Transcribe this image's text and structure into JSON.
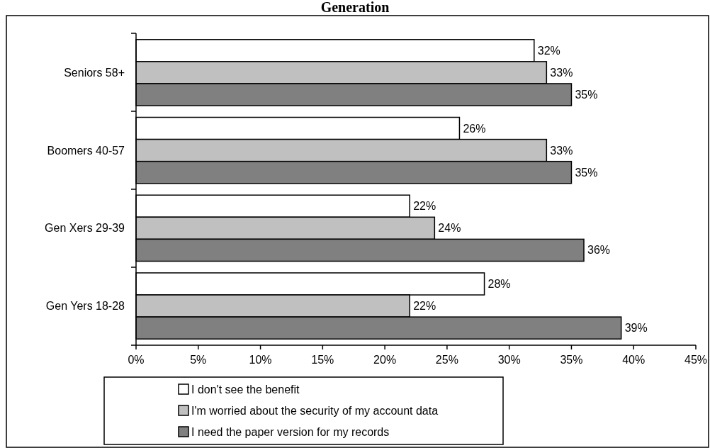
{
  "chart_data": {
    "type": "bar",
    "orientation": "horizontal",
    "title": "Generation",
    "categories": [
      "Seniors 58+",
      "Boomers 40-57",
      "Gen Xers 29-39",
      "Gen Yers 18-28"
    ],
    "series": [
      {
        "name": "I don't see the benefit",
        "color": "#ffffff",
        "values": [
          32,
          26,
          22,
          28
        ],
        "value_labels": [
          "32%",
          "26%",
          "22%",
          "28%"
        ]
      },
      {
        "name": "I'm worried about the security of my account data",
        "color": "#c0c0c0",
        "values": [
          33,
          33,
          24,
          22
        ],
        "value_labels": [
          "33%",
          "33%",
          "24%",
          "22%"
        ]
      },
      {
        "name": "I need the paper version for my records",
        "color": "#808080",
        "values": [
          35,
          35,
          36,
          39
        ],
        "value_labels": [
          "35%",
          "35%",
          "36%",
          "39%"
        ]
      }
    ],
    "xlim": [
      0,
      45
    ],
    "xticks": [
      {
        "value": 0,
        "label": "0%"
      },
      {
        "value": 5,
        "label": "5%"
      },
      {
        "value": 10,
        "label": "10%"
      },
      {
        "value": 15,
        "label": "15%"
      },
      {
        "value": 20,
        "label": "20%"
      },
      {
        "value": 25,
        "label": "25%"
      },
      {
        "value": 30,
        "label": "30%"
      },
      {
        "value": 35,
        "label": "35%"
      },
      {
        "value": 40,
        "label": "40%"
      },
      {
        "value": 45,
        "label": "45%"
      }
    ],
    "grid": false,
    "legend": "bottom"
  }
}
